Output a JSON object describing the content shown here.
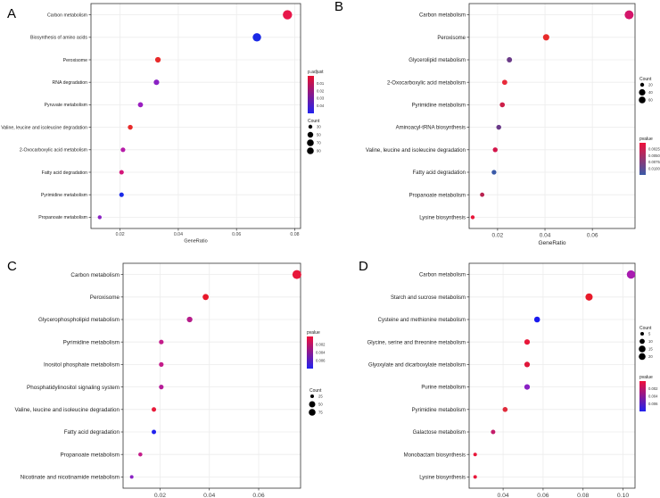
{
  "chart_data": [
    {
      "panel": "A",
      "type": "scatter",
      "xlabel": "GeneRatio",
      "ylabel": "",
      "xlim": [
        0.01,
        0.082
      ],
      "xticks": [
        0.02,
        0.04,
        0.06,
        0.08
      ],
      "xtick_labels": [
        "0.02",
        "0.04",
        "0.06",
        "0.08"
      ],
      "color_title": "p.adjust",
      "color_ticks": [
        "0.01",
        "0.02",
        "0.03",
        "0.04"
      ],
      "color_stop_colors": [
        "#e8102f",
        "#2222ee"
      ],
      "size_title": "Count",
      "size_ticks": [
        "30",
        "50",
        "70",
        "90"
      ],
      "points": [
        {
          "term": "Carbon metabolism",
          "x": 0.0775,
          "count": 90,
          "color": "#e8174a"
        },
        {
          "term": "Biosynthesis of amino acids",
          "x": 0.067,
          "count": 78,
          "color": "#1a29e6"
        },
        {
          "term": "Peroxisome",
          "x": 0.033,
          "count": 38,
          "color": "#e82a2a"
        },
        {
          "term": "RNA degradation",
          "x": 0.0325,
          "count": 37,
          "color": "#8a22c4"
        },
        {
          "term": "Pyruvate metabolism",
          "x": 0.027,
          "count": 32,
          "color": "#9a1fc0"
        },
        {
          "term": "Valine, leucine and isoleucine degradation",
          "x": 0.0235,
          "count": 28,
          "color": "#e82a2a"
        },
        {
          "term": "2-Oxocarboxylic acid metabolism",
          "x": 0.021,
          "count": 25,
          "color": "#b61ca8"
        },
        {
          "term": "Fatty acid degradation",
          "x": 0.0205,
          "count": 24,
          "color": "#d4157a"
        },
        {
          "term": "Pyrimidine metabolism",
          "x": 0.0205,
          "count": 24,
          "color": "#1a2ae8"
        },
        {
          "term": "Propanoate metabolism",
          "x": 0.013,
          "count": 15,
          "color": "#8a22c4"
        }
      ]
    },
    {
      "panel": "B",
      "type": "scatter",
      "xlabel": "GeneRatio",
      "ylabel": "",
      "xlim": [
        0.008,
        0.078
      ],
      "xticks": [
        0.02,
        0.04,
        0.06
      ],
      "xtick_labels": [
        "0.02",
        "0.04",
        "0.06"
      ],
      "color_title": "pvalue",
      "color_ticks": [
        "0.0025",
        "0.0050",
        "0.0075",
        "0.0100"
      ],
      "color_stop_colors": [
        "#f0103a",
        "#3a5aa8"
      ],
      "size_title": "Count",
      "size_ticks": [
        "20",
        "40",
        "60"
      ],
      "points": [
        {
          "term": "Carbon metabolism",
          "x": 0.0755,
          "count": 70,
          "color": "#d4156a"
        },
        {
          "term": "Peroxisome",
          "x": 0.0405,
          "count": 38,
          "color": "#e82a2a"
        },
        {
          "term": "Glycerolipid metabolism",
          "x": 0.025,
          "count": 25,
          "color": "#6a3a88"
        },
        {
          "term": "2-Oxocarboxylic acid metabolism",
          "x": 0.023,
          "count": 23,
          "color": "#e82a3a"
        },
        {
          "term": "Pyrimidine metabolism",
          "x": 0.022,
          "count": 22,
          "color": "#cc1f48"
        },
        {
          "term": "Aminoacyl-tRNA biosynthesis",
          "x": 0.0205,
          "count": 20,
          "color": "#6a3a88"
        },
        {
          "term": "Valine, leucine and isoleucine degradation",
          "x": 0.019,
          "count": 19,
          "color": "#d4154a"
        },
        {
          "term": "Fatty acid degradation",
          "x": 0.0185,
          "count": 18,
          "color": "#3a5aa8"
        },
        {
          "term": "Propanoate metabolism",
          "x": 0.0135,
          "count": 13,
          "color": "#b8224f"
        },
        {
          "term": "Lysine biosynthesis",
          "x": 0.0095,
          "count": 8,
          "color": "#e8173a"
        }
      ]
    },
    {
      "panel": "C",
      "type": "scatter",
      "xlabel": "GeneRatio",
      "ylabel": "",
      "xlim": [
        0.005,
        0.077
      ],
      "xticks": [
        0.02,
        0.04,
        0.06
      ],
      "xtick_labels": [
        "0.02",
        "0.04",
        "0.06"
      ],
      "color_title": "pvalue",
      "color_ticks": [
        "0.002",
        "0.004",
        "0.006"
      ],
      "color_stop_colors": [
        "#f0103a",
        "#2222ee"
      ],
      "size_title": "Count",
      "size_ticks": [
        "25",
        "50",
        "75"
      ],
      "points": [
        {
          "term": "Carbon metabolism",
          "x": 0.0755,
          "count": 75,
          "color": "#e8173a"
        },
        {
          "term": "Peroxisome",
          "x": 0.0385,
          "count": 38,
          "color": "#e8172a"
        },
        {
          "term": "Glycerophospholipid metabolism",
          "x": 0.032,
          "count": 32,
          "color": "#b61c8a"
        },
        {
          "term": "Pyrimidine metabolism",
          "x": 0.0205,
          "count": 20,
          "color": "#c41c8a"
        },
        {
          "term": "Inositol phosphate metabolism",
          "x": 0.0205,
          "count": 20,
          "color": "#c41c8a"
        },
        {
          "term": "Phosphatidylinositol signaling system",
          "x": 0.0205,
          "count": 20,
          "color": "#b61c98"
        },
        {
          "term": "Valine, leucine and isoleucine degradation",
          "x": 0.0175,
          "count": 18,
          "color": "#e81a3a"
        },
        {
          "term": "Fatty acid degradation",
          "x": 0.0175,
          "count": 17,
          "color": "#2222ee"
        },
        {
          "term": "Propanoate metabolism",
          "x": 0.012,
          "count": 12,
          "color": "#c41c8a"
        },
        {
          "term": "Nicotinate and nicotinamide metabolism",
          "x": 0.0085,
          "count": 6,
          "color": "#8a22c4"
        }
      ]
    },
    {
      "panel": "D",
      "type": "scatter",
      "xlabel": "GeneRatio",
      "ylabel": "",
      "xlim": [
        0.023,
        0.106
      ],
      "xticks": [
        0.04,
        0.06,
        0.08,
        0.1
      ],
      "xtick_labels": [
        "0.04",
        "0.06",
        "0.08",
        "0.10"
      ],
      "color_title": "pvalue",
      "color_ticks": [
        "0.002",
        "0.004",
        "0.006"
      ],
      "color_stop_colors": [
        "#f0103a",
        "#2222ee"
      ],
      "size_title": "Count",
      "size_ticks": [
        "5",
        "10",
        "15",
        "20"
      ],
      "points": [
        {
          "term": "Carbon metabolism",
          "x": 0.104,
          "count": 21,
          "color": "#a81cb0"
        },
        {
          "term": "Starch and sucrose metabolism",
          "x": 0.083,
          "count": 17,
          "color": "#e81a2a"
        },
        {
          "term": "Cysteine and methionine metabolism",
          "x": 0.057,
          "count": 12,
          "color": "#1a1aee"
        },
        {
          "term": "Glycine, serine and threonine metabolism",
          "x": 0.052,
          "count": 11,
          "color": "#e8173a"
        },
        {
          "term": "Glyoxylate and dicarboxylate metabolism",
          "x": 0.052,
          "count": 11,
          "color": "#e0173a"
        },
        {
          "term": "Purine metabolism",
          "x": 0.052,
          "count": 11,
          "color": "#8a22c4"
        },
        {
          "term": "Pyrimidine metabolism",
          "x": 0.041,
          "count": 9,
          "color": "#e02a3a"
        },
        {
          "term": "Galactose metabolism",
          "x": 0.035,
          "count": 7,
          "color": "#c41c6a"
        },
        {
          "term": "Monobactam biosynthesis",
          "x": 0.026,
          "count": 4,
          "color": "#e8173a"
        },
        {
          "term": "Lysine biosynthesis",
          "x": 0.026,
          "count": 4,
          "color": "#e8173a"
        }
      ]
    }
  ]
}
